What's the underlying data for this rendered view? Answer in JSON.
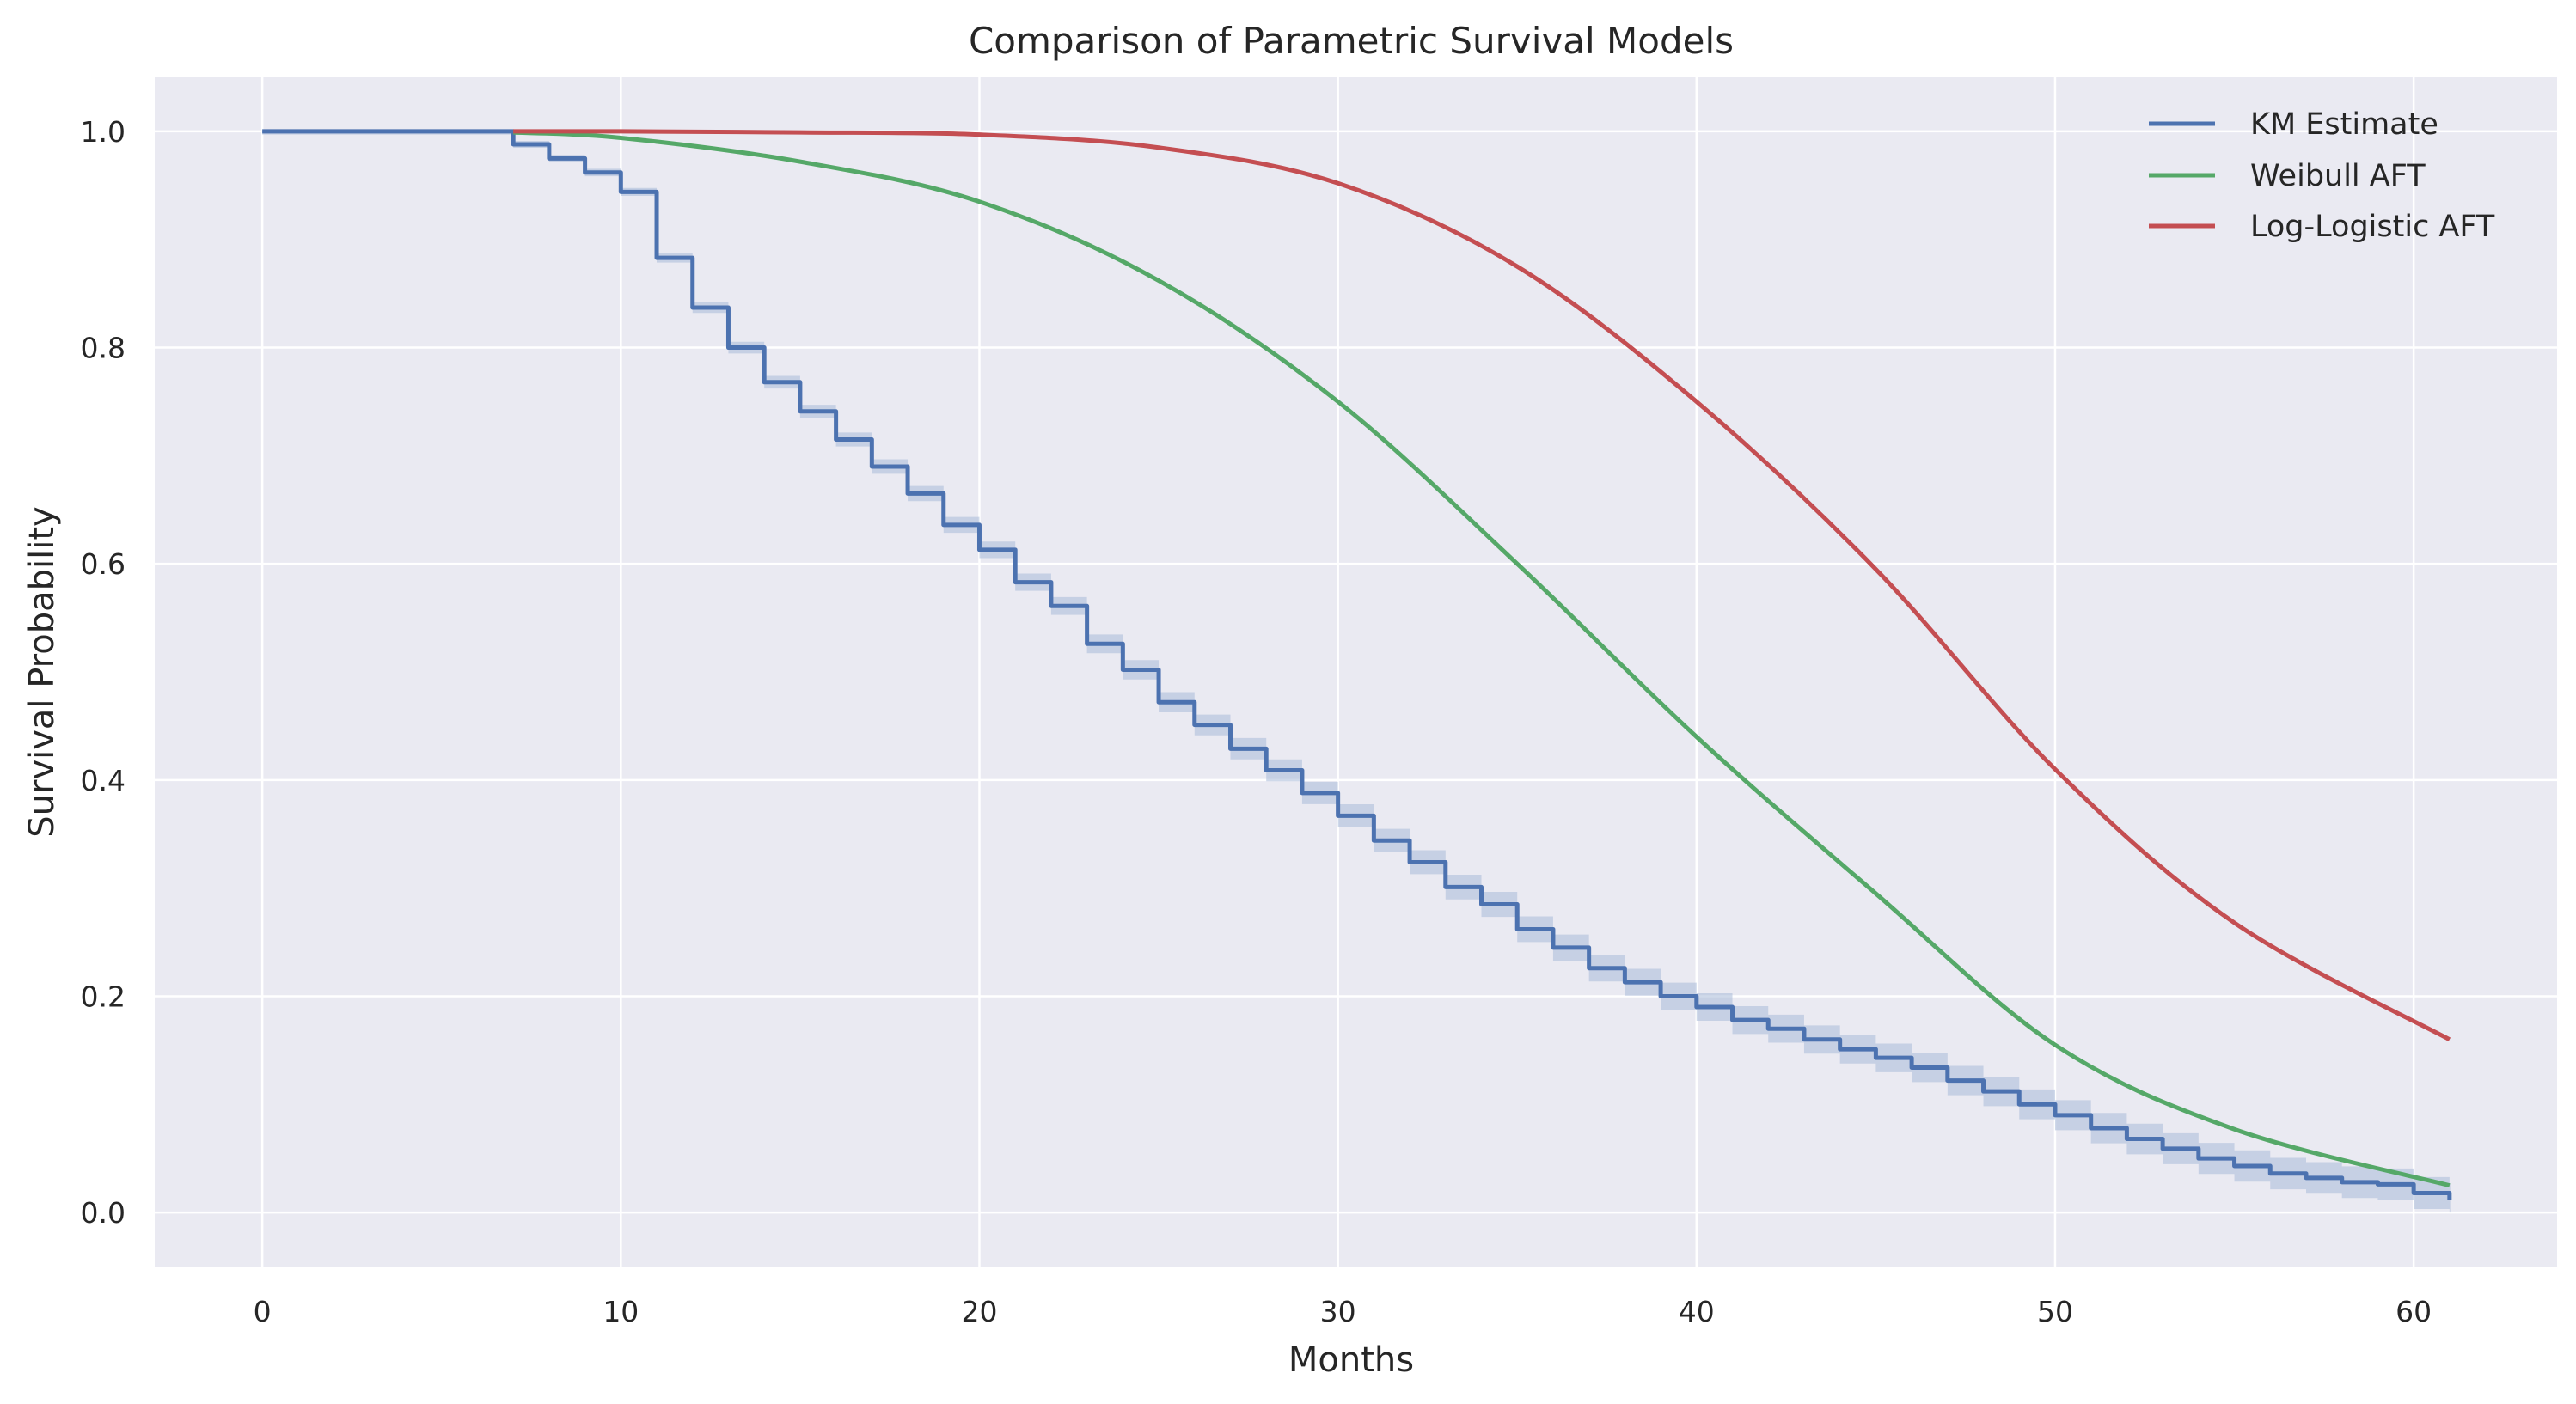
{
  "chart_data": {
    "type": "line",
    "title": "Comparison of Parametric Survival Models",
    "xlabel": "Months",
    "ylabel": "Survival Probability",
    "xlim": [
      -3,
      64
    ],
    "ylim": [
      -0.05,
      1.05
    ],
    "xticks": [
      0,
      10,
      20,
      30,
      40,
      50,
      60
    ],
    "yticks": [
      0.0,
      0.2,
      0.4,
      0.6,
      0.8,
      1.0
    ],
    "xtick_labels": [
      "0",
      "10",
      "20",
      "30",
      "40",
      "50",
      "60"
    ],
    "ytick_labels": [
      "0.0",
      "0.2",
      "0.4",
      "0.6",
      "0.8",
      "1.0"
    ],
    "grid": true,
    "background": "#eaeaf2",
    "legend_position": "top-right",
    "series": [
      {
        "name": "KM Estimate",
        "kind": "step",
        "color": "#4c72b0",
        "ci_color": "#a7b9d8",
        "x": [
          0,
          7,
          8,
          9,
          10,
          11,
          12,
          13,
          14,
          15,
          16,
          17,
          18,
          19,
          20,
          21,
          22,
          23,
          24,
          25,
          26,
          27,
          28,
          29,
          30,
          31,
          32,
          33,
          34,
          35,
          36,
          37,
          38,
          39,
          40,
          41,
          42,
          43,
          44,
          45,
          46,
          47,
          48,
          49,
          50,
          51,
          52,
          53,
          54,
          55,
          56,
          57,
          58,
          59,
          60,
          61
        ],
        "y": [
          1.0,
          0.988,
          0.975,
          0.962,
          0.944,
          0.883,
          0.837,
          0.8,
          0.768,
          0.741,
          0.715,
          0.69,
          0.665,
          0.636,
          0.613,
          0.583,
          0.561,
          0.526,
          0.502,
          0.472,
          0.451,
          0.429,
          0.409,
          0.388,
          0.367,
          0.344,
          0.324,
          0.301,
          0.285,
          0.262,
          0.245,
          0.226,
          0.213,
          0.2,
          0.19,
          0.178,
          0.17,
          0.16,
          0.151,
          0.143,
          0.134,
          0.122,
          0.112,
          0.1,
          0.09,
          0.078,
          0.068,
          0.059,
          0.05,
          0.043,
          0.036,
          0.032,
          0.028,
          0.026,
          0.018,
          0.012
        ]
      },
      {
        "name": "Weibull AFT",
        "kind": "line",
        "color": "#55a868",
        "x": [
          7,
          10,
          15,
          20,
          25,
          30,
          35,
          40,
          45,
          50,
          55,
          61
        ],
        "y": [
          0.999,
          0.994,
          0.972,
          0.935,
          0.862,
          0.75,
          0.6,
          0.44,
          0.295,
          0.155,
          0.077,
          0.025
        ]
      },
      {
        "name": "Log-Logistic AFT",
        "kind": "line",
        "color": "#c44e52",
        "x": [
          7,
          10,
          15,
          20,
          25,
          30,
          35,
          40,
          45,
          50,
          55,
          61
        ],
        "y": [
          1.0,
          1.0,
          0.999,
          0.997,
          0.985,
          0.952,
          0.875,
          0.75,
          0.595,
          0.41,
          0.268,
          0.16
        ]
      }
    ]
  }
}
